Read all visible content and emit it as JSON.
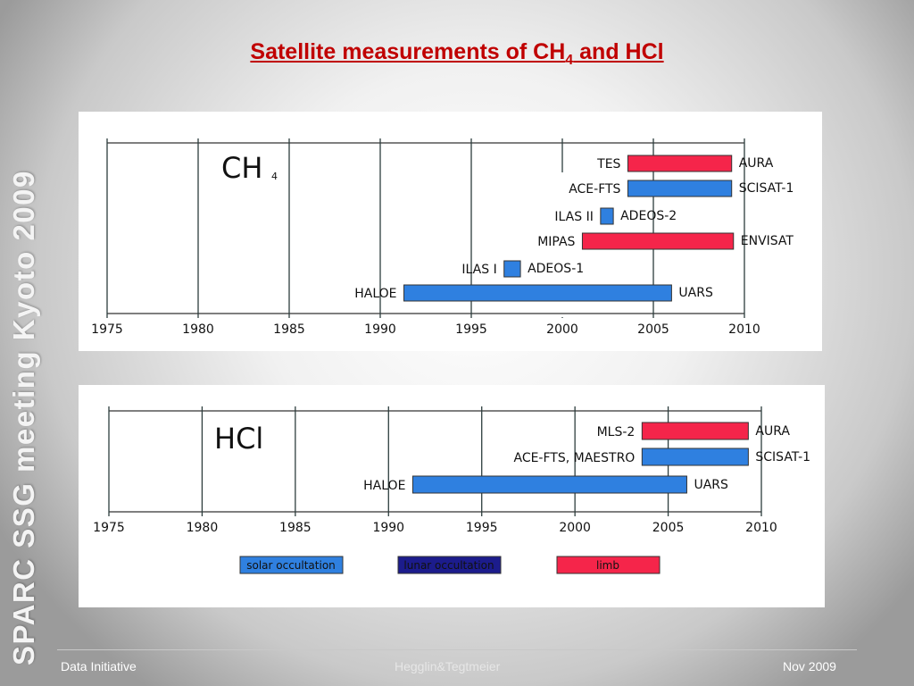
{
  "slide": {
    "title": "Satellite measurements of CH",
    "title_subscript": "4",
    "title_suffix": " and HCl",
    "side_text": "SPARC SSG meeting Kyoto 2009",
    "footer_left": "Data Initiative",
    "footer_center": "Hegglin&Tegtmeier",
    "footer_right": "Nov 2009"
  },
  "colors": {
    "solar_occultation": "#2f80e0",
    "lunar_occultation": "#1c1c8c",
    "limb": "#f5254a",
    "title": "#c00000"
  },
  "legend": [
    {
      "label": "solar occultation",
      "key": "solar_occultation"
    },
    {
      "label": "lunar occultation",
      "key": "lunar_occultation"
    },
    {
      "label": "limb",
      "key": "limb"
    }
  ],
  "chart_data": [
    {
      "type": "bar",
      "title": "CH",
      "title_subscript": "4",
      "x_range": [
        1975,
        2010
      ],
      "x_ticks": [
        "1975",
        "1980",
        "1985",
        "1990",
        "1995",
        "2000",
        "2005",
        "2010"
      ],
      "series": [
        {
          "instrument": "TES",
          "satellite": "AURA",
          "start": 2003.6,
          "end": 2009.3,
          "method": "limb"
        },
        {
          "instrument": "ACE-FTS",
          "satellite": "SCISAT-1",
          "start": 2003.6,
          "end": 2009.3,
          "method": "solar_occultation"
        },
        {
          "instrument": "ILAS II",
          "satellite": "ADEOS-2",
          "start": 2002.1,
          "end": 2002.8,
          "method": "solar_occultation"
        },
        {
          "instrument": "MIPAS",
          "satellite": "ENVISAT",
          "start": 2001.1,
          "end": 2009.4,
          "method": "limb"
        },
        {
          "instrument": "ILAS I",
          "satellite": "ADEOS-1",
          "start": 1996.8,
          "end": 1997.7,
          "method": "solar_occultation"
        },
        {
          "instrument": "HALOE",
          "satellite": "UARS",
          "start": 1991.3,
          "end": 2006.0,
          "method": "solar_occultation"
        }
      ]
    },
    {
      "type": "bar",
      "title": "HCl",
      "x_range": [
        1975,
        2010
      ],
      "x_ticks": [
        "1975",
        "1980",
        "1985",
        "1990",
        "1995",
        "2000",
        "2005",
        "2010"
      ],
      "series": [
        {
          "instrument": "MLS-2",
          "satellite": "AURA",
          "start": 2003.6,
          "end": 2009.3,
          "method": "limb"
        },
        {
          "instrument": "ACE-FTS,  MAESTRO",
          "satellite": "SCISAT-1",
          "start": 2003.6,
          "end": 2009.3,
          "method": "solar_occultation"
        },
        {
          "instrument": "HALOE",
          "satellite": "UARS",
          "start": 1991.3,
          "end": 2006.0,
          "method": "solar_occultation"
        }
      ]
    }
  ]
}
